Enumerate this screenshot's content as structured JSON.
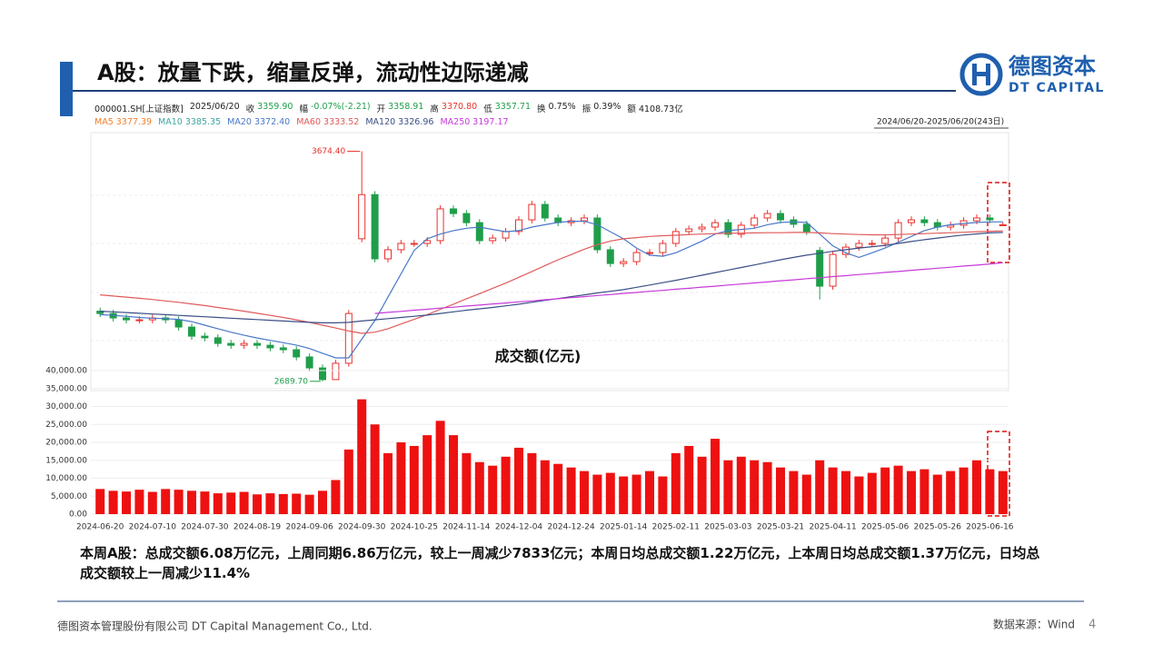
{
  "header": {
    "title": "A股：放量下跌，缩量反弹，流动性边际递减",
    "logo_cn": "德图资本",
    "logo_en": "DT CAPITAL"
  },
  "quote": {
    "code": "000001.SH[上证指数]",
    "date": "2025/06/20",
    "items": [
      {
        "label": "收",
        "value": "3359.90",
        "color": "#1f9e4a"
      },
      {
        "label": "幅",
        "value": "-0.07%(-2.21)",
        "color": "#1f9e4a"
      },
      {
        "label": "开",
        "value": "3358.91",
        "color": "#1f9e4a"
      },
      {
        "label": "高",
        "value": "3370.80",
        "color": "#e8322d"
      },
      {
        "label": "低",
        "value": "3357.71",
        "color": "#1f9e4a"
      },
      {
        "label": "换",
        "value": "0.75%",
        "color": "#222222"
      },
      {
        "label": "振",
        "value": "0.39%",
        "color": "#222222"
      },
      {
        "label": "额",
        "value": "4108.73亿",
        "color": "#222222"
      }
    ]
  },
  "range_label": "2024/06/20-2025/06/20(243日)",
  "chart_data": [
    {
      "type": "candlestick",
      "up_color": "#e8322d",
      "down_color": "#1f9e4a",
      "ylim": [
        2650,
        3700
      ],
      "max_label": "3674.40",
      "min_label": "2689.70",
      "legend": [
        {
          "name": "MA5",
          "label": "3377.39",
          "color": "#f07f2a"
        },
        {
          "name": "MA10",
          "label": "3385.35",
          "color": "#3fa6a0"
        },
        {
          "name": "MA20",
          "label": "3372.40",
          "color": "#4a78c8"
        },
        {
          "name": "MA60",
          "label": "3333.52",
          "color": "#e05a5a"
        },
        {
          "name": "MA120",
          "label": "3326.96",
          "color": "#3b4f86"
        },
        {
          "name": "MA250",
          "label": "3197.17",
          "color": "#c63ad8"
        }
      ],
      "open": [
        2990,
        2980,
        2961,
        2953,
        2953,
        2961,
        2953,
        2922,
        2883,
        2876,
        2852,
        2844,
        2852,
        2844,
        2833,
        2825,
        2794,
        2747,
        2697,
        2767,
        3300,
        3489,
        3214,
        3253,
        3280,
        3280,
        3292,
        3428,
        3408,
        3369,
        3292,
        3303,
        3331,
        3381,
        3447,
        3389,
        3369,
        3377,
        3389,
        3253,
        3194,
        3202,
        3241,
        3241,
        3280,
        3331,
        3342,
        3350,
        3369,
        3319,
        3358,
        3389,
        3408,
        3381,
        3362,
        3250,
        3097,
        3233,
        3264,
        3280,
        3280,
        3303,
        3369,
        3381,
        3369,
        3350,
        3358,
        3377,
        3389,
        3358.91
      ],
      "high": [
        3005,
        2995,
        2976,
        2968,
        2976,
        2976,
        2968,
        2937,
        2898,
        2891,
        2867,
        2867,
        2867,
        2859,
        2848,
        2840,
        2809,
        2762,
        2782,
        2995,
        3674.4,
        3504,
        3268,
        3295,
        3295,
        3307,
        3443,
        3443,
        3423,
        3384,
        3318,
        3346,
        3396,
        3462,
        3462,
        3404,
        3392,
        3404,
        3404,
        3268,
        3217,
        3256,
        3256,
        3295,
        3346,
        3357,
        3365,
        3384,
        3384,
        3373,
        3404,
        3423,
        3423,
        3396,
        3377,
        3265,
        3248,
        3279,
        3295,
        3295,
        3318,
        3384,
        3396,
        3396,
        3384,
        3373,
        3392,
        3404,
        3404,
        3370.8
      ],
      "low": [
        2965,
        2946,
        2938,
        2938,
        2938,
        2938,
        2907,
        2868,
        2861,
        2837,
        2829,
        2829,
        2829,
        2818,
        2810,
        2779,
        2732,
        2689.7,
        2700,
        2752,
        3285,
        3199,
        3199,
        3238,
        3265,
        3265,
        3277,
        3393,
        3354,
        3277,
        3277,
        3288,
        3316,
        3366,
        3374,
        3354,
        3354,
        3362,
        3238,
        3179,
        3179,
        3187,
        3226,
        3226,
        3265,
        3316,
        3327,
        3335,
        3304,
        3304,
        3343,
        3374,
        3366,
        3347,
        3316,
        3040,
        3082,
        3218,
        3249,
        3265,
        3265,
        3288,
        3354,
        3354,
        3335,
        3335,
        3343,
        3362,
        3366,
        3357.71
      ],
      "close": [
        2980,
        2961,
        2953,
        2953,
        2961,
        2953,
        2922,
        2883,
        2876,
        2852,
        2844,
        2852,
        2844,
        2833,
        2825,
        2794,
        2747,
        2697,
        2767,
        2980,
        3489,
        3214,
        3253,
        3280,
        3280,
        3292,
        3428,
        3408,
        3369,
        3292,
        3303,
        3331,
        3381,
        3447,
        3389,
        3369,
        3377,
        3389,
        3253,
        3194,
        3202,
        3241,
        3241,
        3280,
        3331,
        3342,
        3350,
        3369,
        3319,
        3358,
        3389,
        3408,
        3381,
        3362,
        3331,
        3097,
        3233,
        3264,
        3280,
        3280,
        3303,
        3369,
        3381,
        3369,
        3350,
        3358,
        3377,
        3389,
        3381,
        3359.9
      ],
      "lines": {
        "MA20": [
          2975,
          2972,
          2968,
          2963,
          2960,
          2958,
          2955,
          2945,
          2930,
          2915,
          2900,
          2887,
          2875,
          2865,
          2855,
          2845,
          2830,
          2810,
          2790,
          2790,
          2870,
          2950,
          3050,
          3150,
          3250,
          3300,
          3320,
          3335,
          3345,
          3350,
          3340,
          3330,
          3335,
          3350,
          3360,
          3370,
          3375,
          3375,
          3360,
          3330,
          3300,
          3260,
          3230,
          3225,
          3240,
          3265,
          3290,
          3320,
          3335,
          3340,
          3345,
          3360,
          3370,
          3372,
          3370,
          3320,
          3270,
          3240,
          3220,
          3240,
          3260,
          3285,
          3310,
          3335,
          3350,
          3360,
          3365,
          3370,
          3372,
          3372.4
        ],
        "MA60": [
          3060,
          3055,
          3050,
          3045,
          3040,
          3034,
          3028,
          3021,
          3014,
          3006,
          2998,
          2990,
          2981,
          2972,
          2963,
          2953,
          2942,
          2930,
          2918,
          2905,
          2895,
          2900,
          2915,
          2935,
          2955,
          2975,
          2998,
          3020,
          3043,
          3065,
          3088,
          3110,
          3135,
          3160,
          3185,
          3210,
          3232,
          3255,
          3275,
          3290,
          3300,
          3305,
          3310,
          3313,
          3315,
          3318,
          3320,
          3322,
          3323,
          3324,
          3325,
          3326,
          3326,
          3327,
          3327,
          3325,
          3322,
          3320,
          3318,
          3317,
          3317,
          3318,
          3320,
          3322,
          3324,
          3326,
          3328,
          3330,
          3332,
          3333.52
        ],
        "MA120": [
          2990,
          2987,
          2984,
          2981,
          2978,
          2975,
          2972,
          2969,
          2966,
          2963,
          2960,
          2957,
          2954,
          2951,
          2948,
          2945,
          2942,
          2940,
          2940,
          2942,
          2948,
          2953,
          2958,
          2963,
          2968,
          2973,
          2980,
          2987,
          2994,
          3000,
          3006,
          3013,
          3020,
          3028,
          3036,
          3044,
          3052,
          3060,
          3068,
          3075,
          3082,
          3092,
          3102,
          3112,
          3122,
          3133,
          3144,
          3155,
          3166,
          3177,
          3188,
          3199,
          3210,
          3220,
          3230,
          3238,
          3246,
          3253,
          3260,
          3266,
          3272,
          3280,
          3288,
          3296,
          3303,
          3310,
          3316,
          3321,
          3325,
          3326.96
        ],
        "MA250": [
          null,
          null,
          null,
          null,
          null,
          null,
          null,
          null,
          null,
          null,
          null,
          null,
          null,
          null,
          null,
          null,
          null,
          null,
          null,
          null,
          null,
          2980,
          2985,
          2989,
          2994,
          2998,
          3003,
          3007,
          3012,
          3016,
          3021,
          3025,
          3030,
          3034,
          3039,
          3043,
          3048,
          3052,
          3057,
          3061,
          3066,
          3070,
          3075,
          3079,
          3084,
          3088,
          3093,
          3097,
          3102,
          3106,
          3111,
          3115,
          3120,
          3124,
          3129,
          3133,
          3138,
          3142,
          3147,
          3151,
          3156,
          3160,
          3165,
          3169,
          3174,
          3178,
          3183,
          3187,
          3192,
          3197.17
        ]
      }
    },
    {
      "type": "bar",
      "title": "成交额(亿元)",
      "color": "#ee1111",
      "categories": [
        "2024-06-20",
        null,
        null,
        null,
        "2024-07-10",
        null,
        null,
        null,
        "2024-07-30",
        null,
        null,
        null,
        "2024-08-19",
        null,
        null,
        null,
        "2024-09-06",
        null,
        null,
        null,
        "2024-09-30",
        null,
        null,
        null,
        "2024-10-25",
        null,
        null,
        null,
        "2024-11-14",
        null,
        null,
        null,
        "2024-12-04",
        null,
        null,
        null,
        "2024-12-24",
        null,
        null,
        null,
        "2025-01-14",
        null,
        null,
        null,
        "2025-02-11",
        null,
        null,
        null,
        "2025-03-03",
        null,
        null,
        null,
        "2025-03-21",
        null,
        null,
        null,
        "2025-04-11",
        null,
        null,
        null,
        "2025-05-06",
        null,
        null,
        null,
        "2025-05-26",
        null,
        null,
        null,
        "2025-06-16",
        null
      ],
      "values": [
        7000,
        6500,
        6300,
        6800,
        6200,
        7000,
        6800,
        6500,
        6300,
        5800,
        6000,
        6200,
        5500,
        5800,
        5600,
        5700,
        5400,
        6500,
        9500,
        18000,
        32000,
        25000,
        17000,
        20000,
        19000,
        22000,
        26000,
        22000,
        17000,
        14500,
        13500,
        16000,
        18500,
        17000,
        15000,
        14000,
        13000,
        12000,
        11000,
        11500,
        10500,
        11000,
        12000,
        10500,
        17000,
        19000,
        16000,
        21000,
        15000,
        16000,
        15000,
        14500,
        13000,
        12000,
        11000,
        15000,
        13000,
        12000,
        10500,
        11500,
        13000,
        13500,
        12000,
        12500,
        11000,
        12000,
        13000,
        15000,
        12500,
        12000
      ],
      "ylim": [
        0,
        40000
      ],
      "yticks": [
        {
          "value": 0,
          "label": "0.00"
        },
        {
          "value": 5000,
          "label": "5,000.00"
        },
        {
          "value": 10000,
          "label": "10,000.00"
        },
        {
          "value": 15000,
          "label": "15,000.00"
        },
        {
          "value": 20000,
          "label": "20,000.00"
        },
        {
          "value": 25000,
          "label": "25,000.00"
        },
        {
          "value": 30000,
          "label": "30,000.00"
        },
        {
          "value": 35000,
          "label": "35,000.00"
        },
        {
          "value": 40000,
          "label": "40,000.00"
        }
      ]
    }
  ],
  "summary": "本周A股：总成交额6.08万亿元，上周同期6.86万亿元，较上一周减少7833亿元；本周日均总成交额1.22万亿元，上本周日均总成交额1.37万亿元，日均总成交额较上一周减少11.4%",
  "footer": {
    "company": "德图资本管理股份有限公司 DT Capital Management Co., Ltd.",
    "source": "数据来源：Wind",
    "page": "4"
  }
}
